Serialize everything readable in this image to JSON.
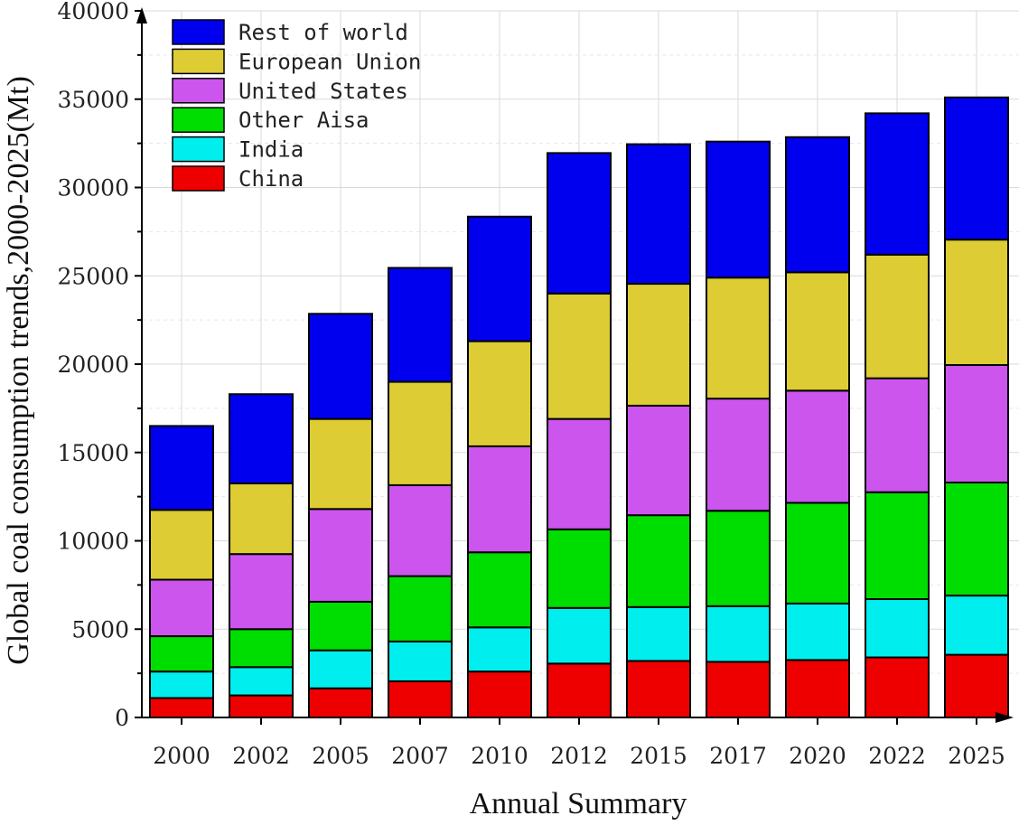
{
  "chart_data": {
    "type": "bar",
    "stacked": true,
    "title": "",
    "xlabel": "Annual Summary",
    "ylabel": "Global coal consumption trends,2000-2025(Mt)",
    "ylim": [
      0,
      40000
    ],
    "yticks": [
      0,
      5000,
      10000,
      15000,
      20000,
      25000,
      30000,
      35000,
      40000
    ],
    "grid": true,
    "legend_position": "top-left",
    "categories": [
      "2000",
      "2002",
      "2005",
      "2007",
      "2010",
      "2012",
      "2015",
      "2017",
      "2020",
      "2022",
      "2025"
    ],
    "series": [
      {
        "name": "China",
        "color": "#ee0000",
        "values": [
          1100,
          1250,
          1650,
          2050,
          2600,
          3050,
          3200,
          3150,
          3250,
          3400,
          3550
        ]
      },
      {
        "name": "India",
        "color": "#00eeee",
        "values": [
          1500,
          1600,
          2150,
          2250,
          2500,
          3150,
          3050,
          3150,
          3200,
          3300,
          3350
        ]
      },
      {
        "name": "Other Aisa",
        "color": "#00dd00",
        "values": [
          2000,
          2150,
          2750,
          3700,
          4250,
          4450,
          5200,
          5400,
          5700,
          6050,
          6400
        ]
      },
      {
        "name": "United States",
        "color": "#cc55ee",
        "values": [
          3200,
          4250,
          5250,
          5150,
          6000,
          6250,
          6200,
          6350,
          6350,
          6450,
          6650
        ]
      },
      {
        "name": "European Union",
        "color": "#ddcc33",
        "values": [
          3950,
          4000,
          5100,
          5850,
          5950,
          7100,
          6900,
          6850,
          6700,
          7000,
          7100
        ]
      },
      {
        "name": "Rest of world",
        "color": "#0000ee",
        "values": [
          4750,
          5050,
          5950,
          6450,
          7050,
          7950,
          7900,
          7700,
          7650,
          8000,
          8050
        ]
      }
    ],
    "legend_order": [
      "Rest of world",
      "European Union",
      "United States",
      "Other Aisa",
      "India",
      "China"
    ]
  }
}
